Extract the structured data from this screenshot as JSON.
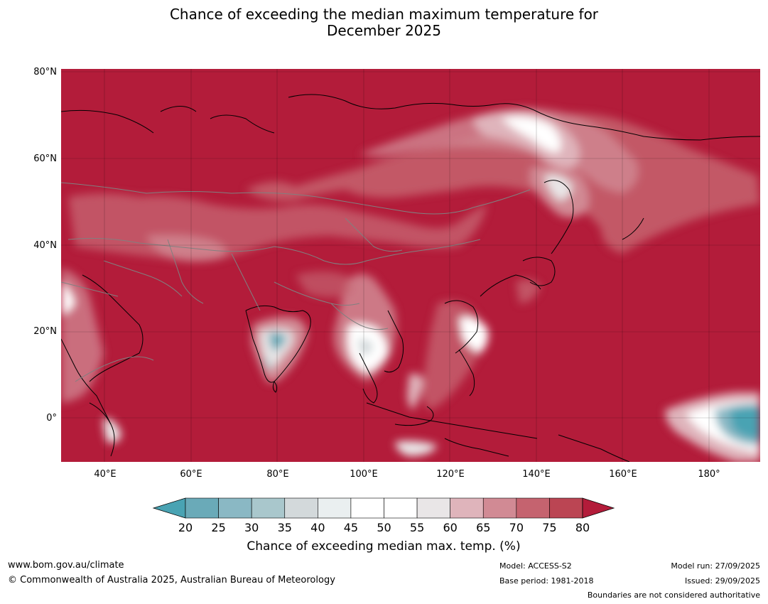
{
  "title": {
    "line1": "Chance of exceeding the median maximum temperature for",
    "line2": "December 2025"
  },
  "map": {
    "extent": {
      "lon_min": 30,
      "lon_max": 192,
      "lat_min": -10,
      "lat_max": 81
    },
    "lat_ticks": [
      "80°N",
      "60°N",
      "40°N",
      "20°N",
      "0°"
    ],
    "lon_ticks": [
      "40°E",
      "60°E",
      "80°E",
      "100°E",
      "120°E",
      "140°E",
      "160°E",
      "180°"
    ],
    "background_color": "#b31c3a",
    "grid": true
  },
  "colorbar": {
    "tick_labels": [
      "20",
      "25",
      "30",
      "35",
      "40",
      "45",
      "50",
      "55",
      "60",
      "65",
      "70",
      "75",
      "80"
    ],
    "colors": [
      "#6aaab8",
      "#8ab8c4",
      "#a9c7cc",
      "#d3d9db",
      "#eaeff0",
      "#ffffff",
      "#ffffff",
      "#e9e6e7",
      "#dfb4bb",
      "#d18a94",
      "#c5636f",
      "#bb4553"
    ],
    "low_extend_color": "#49a3b3",
    "high_extend_color": "#b31c3a",
    "title": "Chance of exceeding median max. temp. (%)"
  },
  "footer": {
    "website": "www.bom.gov.au/climate",
    "copyright": "© Commonwealth of Australia 2025, Australian Bureau of Meteorology",
    "model": "Model: ACCESS-S2",
    "base_period": "Base period: 1981-2018",
    "model_run": "Model run: 27/09/2025",
    "issued": "Issued: 29/09/2025",
    "disclaimer": "Boundaries are not considered authoritative"
  }
}
